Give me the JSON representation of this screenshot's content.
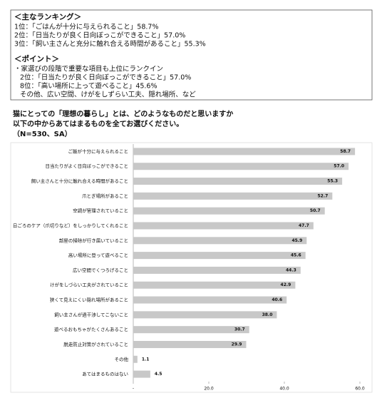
{
  "summary": {
    "heading1": "＜主なランキング＞",
    "ranking": [
      "1位：「ごはんが十分に与えられること」58.7%",
      "2位：「日当たりが良く日向ぼっこができること」57.0%",
      "3位：「飼い主さんと充分に触れ合える時間があること」55.3%"
    ],
    "heading2": "＜ポイント＞",
    "points": [
      "・家選びの段階で重要な項目も上位にランクイン",
      "2位：「日当たりが良く日向ぼっこができること」57.0%",
      "8位：「高い場所に上って遊べること」45.6%",
      "その他、広い空間、けがをしずらい工夫、隠れ場所、など"
    ]
  },
  "chart_data": {
    "type": "barh",
    "title": "猫にとっての「理想の暮らし」とは、どのようなものだと思いますか",
    "subtitle": "以下の中からあてはまるものを全てお選びください。",
    "note": "（N=530、SA）",
    "categories": [
      "ご飯が十分に与えられること",
      "日当たりがよく日向ぼっこができること",
      "飼い主さんと十分に触れ合える時間があること",
      "爪とぎ場所があること",
      "空調が管理されていること",
      "日ごろのケア（爪切りなど）をしっかりしてくれること",
      "部屋の掃除が行き届いていること",
      "高い場所に登って遊べること",
      "広い空間でくつろげること",
      "けがをしづらい工夫がされていること",
      "狭くて見えにくい隠れ場所があること",
      "飼い主さんが過干渉してこないこと",
      "遊べるおもちゃがたくさんあること",
      "脱走防止対策がされていること",
      "その他",
      "あてはまるものはない"
    ],
    "values": [
      58.7,
      57.0,
      55.3,
      52.7,
      50.7,
      47.7,
      45.9,
      45.6,
      44.3,
      42.9,
      40.6,
      38.0,
      30.7,
      29.9,
      1.1,
      4.5
    ],
    "value_labels": [
      "58.7",
      "57.0",
      "55.3",
      "52.7",
      "50.7",
      "47.7",
      "45.9",
      "45.6",
      "44.3",
      "42.9",
      "40.6",
      "38.0",
      "30.7",
      "29.9",
      "1.1",
      "4.5"
    ],
    "color": "#c8c8c8",
    "xlim": [
      0,
      60
    ],
    "xticks": [
      {
        "value": 0,
        "label": "-"
      },
      {
        "value": 20,
        "label": "20.0"
      },
      {
        "value": 40,
        "label": "40.0"
      },
      {
        "value": 60,
        "label": "60.0"
      }
    ]
  }
}
